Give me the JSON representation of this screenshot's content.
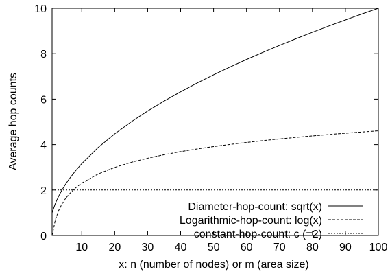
{
  "chart_data": {
    "type": "line",
    "title": "",
    "xlabel": "x: n (number of nodes) or m (area size)",
    "ylabel": "Average hop counts",
    "xlim": [
      1,
      100
    ],
    "ylim": [
      0,
      10
    ],
    "x_ticks": [
      10,
      20,
      30,
      40,
      50,
      60,
      70,
      80,
      90,
      100
    ],
    "y_ticks": [
      0,
      2,
      4,
      6,
      8,
      10
    ],
    "grid": false,
    "legend_position": "bottom-right",
    "x": [
      1,
      2,
      3,
      4,
      5,
      6,
      8,
      10,
      15,
      20,
      25,
      30,
      35,
      40,
      45,
      50,
      55,
      60,
      65,
      70,
      75,
      80,
      85,
      90,
      95,
      100
    ],
    "series": [
      {
        "name": "Diameter-hop-count: sqrt(x)",
        "style": "solid",
        "values": [
          1,
          1.414,
          1.732,
          2,
          2.236,
          2.449,
          2.828,
          3.162,
          3.873,
          4.472,
          5,
          5.477,
          5.916,
          6.325,
          6.708,
          7.071,
          7.416,
          7.746,
          8.062,
          8.367,
          8.66,
          8.944,
          9.22,
          9.487,
          9.747,
          10
        ]
      },
      {
        "name": "Logarithmic-hop-count: log(x)",
        "style": "dashed",
        "values": [
          0,
          0.693,
          1.099,
          1.386,
          1.609,
          1.792,
          2.079,
          2.303,
          2.708,
          2.996,
          3.219,
          3.401,
          3.555,
          3.689,
          3.807,
          3.912,
          4.007,
          4.094,
          4.174,
          4.248,
          4.317,
          4.382,
          4.443,
          4.5,
          4.554,
          4.605
        ]
      },
      {
        "name": "constant-hop-count: c (=2)",
        "style": "dotted",
        "values": [
          2,
          2,
          2,
          2,
          2,
          2,
          2,
          2,
          2,
          2,
          2,
          2,
          2,
          2,
          2,
          2,
          2,
          2,
          2,
          2,
          2,
          2,
          2,
          2,
          2,
          2
        ]
      }
    ]
  }
}
